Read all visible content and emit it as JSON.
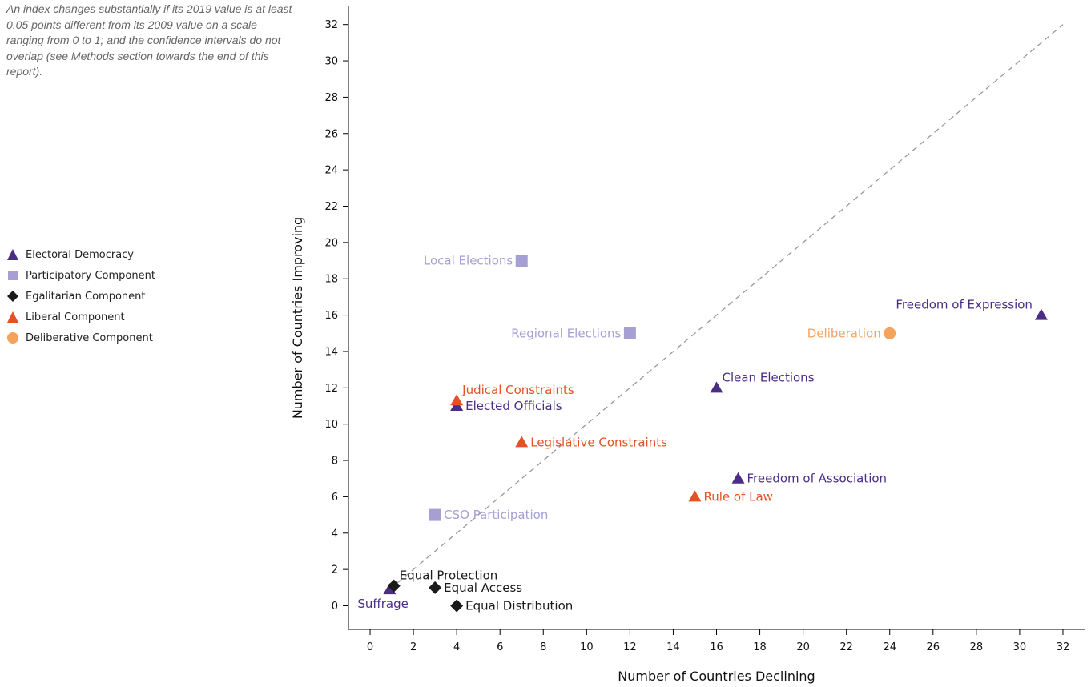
{
  "note": "An index changes substantially if its 2019 value is at least 0.05 points different from its 2009 value on a scale ranging from 0 to 1; and the confidence intervals do not overlap (see Methods section towards the end of this report).",
  "legend": [
    {
      "key": "electoral",
      "label": "Electoral Democracy",
      "color": "#4b2d85",
      "shape": "triangle"
    },
    {
      "key": "participatory",
      "label": "Participatory Component",
      "color": "#a59fd3",
      "shape": "square"
    },
    {
      "key": "egalitarian",
      "label": "Egalitarian Component",
      "color": "#1a1a1a",
      "shape": "diamond"
    },
    {
      "key": "liberal",
      "label": "Liberal Component",
      "color": "#e45126",
      "shape": "triangle"
    },
    {
      "key": "deliberative",
      "label": "Deliberative Component",
      "color": "#f3a35b",
      "shape": "circle"
    }
  ],
  "chart_data": {
    "type": "scatter",
    "xlabel": "Number of Countries Declining",
    "ylabel": "Number of Countries Improving",
    "xlim": [
      -1,
      33
    ],
    "ylim": [
      -1.3,
      33
    ],
    "xticks": [
      0,
      2,
      4,
      6,
      8,
      10,
      12,
      14,
      16,
      18,
      20,
      22,
      24,
      26,
      28,
      30,
      32
    ],
    "yticks": [
      0,
      2,
      4,
      6,
      8,
      10,
      12,
      14,
      16,
      18,
      20,
      22,
      24,
      26,
      28,
      30,
      32
    ],
    "reference_line": "y = x (dashed)",
    "grid": false,
    "legend_position": "left",
    "points": [
      {
        "label": "Local Elections",
        "group": "participatory",
        "x": 7,
        "y": 19,
        "anchor": "left"
      },
      {
        "label": "Regional Elections",
        "group": "participatory",
        "x": 12,
        "y": 15,
        "anchor": "left"
      },
      {
        "label": "CSO Participation",
        "group": "participatory",
        "x": 3,
        "y": 5,
        "anchor": "right"
      },
      {
        "label": "Freedom of Expression",
        "group": "electoral",
        "x": 31,
        "y": 16,
        "anchor": "left-above"
      },
      {
        "label": "Clean Elections",
        "group": "electoral",
        "x": 16,
        "y": 12,
        "anchor": "right-above"
      },
      {
        "label": "Elected Officials",
        "group": "electoral",
        "x": 4,
        "y": 11,
        "anchor": "right"
      },
      {
        "label": "Freedom of Association",
        "group": "electoral",
        "x": 17,
        "y": 7,
        "anchor": "right"
      },
      {
        "label": "Suffrage",
        "group": "electoral",
        "x": 0.9,
        "y": 0.9,
        "anchor": "below-left"
      },
      {
        "label": "Judical Constraints",
        "group": "liberal",
        "x": 4,
        "y": 11.3,
        "anchor": "right-above"
      },
      {
        "label": "Legislative Constraints",
        "group": "liberal",
        "x": 7,
        "y": 9,
        "anchor": "right"
      },
      {
        "label": "Rule of Law",
        "group": "liberal",
        "x": 15,
        "y": 6,
        "anchor": "right"
      },
      {
        "label": "Deliberation",
        "group": "deliberative",
        "x": 24,
        "y": 15,
        "anchor": "left"
      },
      {
        "label": "Equal Protection",
        "group": "egalitarian",
        "x": 1.1,
        "y": 1.1,
        "anchor": "right-above"
      },
      {
        "label": "Equal Access",
        "group": "egalitarian",
        "x": 3,
        "y": 1,
        "anchor": "right"
      },
      {
        "label": "Equal Distribution",
        "group": "egalitarian",
        "x": 4,
        "y": 0,
        "anchor": "right"
      }
    ]
  }
}
